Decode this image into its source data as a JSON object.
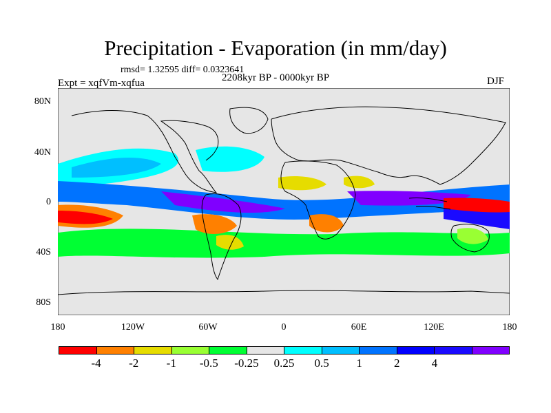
{
  "map": {
    "title": "Precipitation - Evaporation (in mm/day)",
    "stats": "rmsd= 1.32595 diff= 0.0323641",
    "experiment": "Expt = xqfVm-xqfua",
    "period": "2208kyr BP - 0000kyr BP",
    "season": "DJF",
    "lat_labels": [
      "80N",
      "40N",
      "0",
      "40S",
      "80S"
    ],
    "lon_labels": [
      "180",
      "120W",
      "60W",
      "0",
      "60E",
      "120E",
      "180"
    ],
    "ocean_color": "#e6e6e6",
    "coast_color": "#000000"
  },
  "colorbar": {
    "colors": [
      "#ff0000",
      "#ff8000",
      "#e6dc00",
      "#99ff33",
      "#00ff33",
      "#e6e6e6",
      "#00ffff",
      "#00bfff",
      "#0073ff",
      "#0000ff",
      "#1a0aff",
      "#8000ff"
    ],
    "labels": [
      "-4",
      "-2",
      "-1",
      "-0.5",
      "-0.25",
      "0.25",
      "0.5",
      "1",
      "2",
      "4"
    ]
  }
}
